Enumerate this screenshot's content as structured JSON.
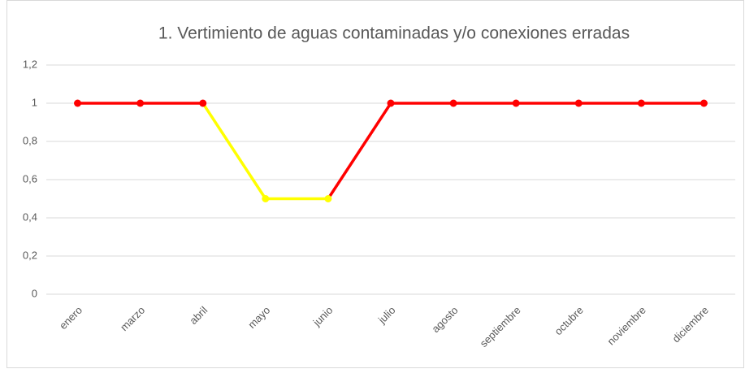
{
  "chart_data": {
    "type": "line",
    "title": "1.   Vertimiento de aguas contaminadas y/o conexiones erradas",
    "categories": [
      "enero",
      "marzo",
      "abril",
      "mayo",
      "junio",
      "julio",
      "agosto",
      "septiembre",
      "octubre",
      "noviembre",
      "diciembre"
    ],
    "series": [
      {
        "values": [
          1,
          1,
          1,
          0.5,
          0.5,
          1,
          1,
          1,
          1,
          1,
          1
        ],
        "point_colors": [
          "#ff0000",
          "#ff0000",
          "#ff0000",
          "#ffff00",
          "#ffff00",
          "#ff0000",
          "#ff0000",
          "#ff0000",
          "#ff0000",
          "#ff0000",
          "#ff0000"
        ]
      }
    ],
    "ylim": [
      0,
      1.2
    ],
    "yticks": [
      0,
      {
        "value": 0.2,
        "label": "0,2"
      },
      {
        "value": 0.4,
        "label": "0,4"
      },
      {
        "value": 0.6,
        "label": "0,6"
      },
      {
        "value": 0.8,
        "label": "0,8"
      },
      1,
      {
        "value": 1.2,
        "label": "1,2"
      }
    ],
    "grid": true
  }
}
